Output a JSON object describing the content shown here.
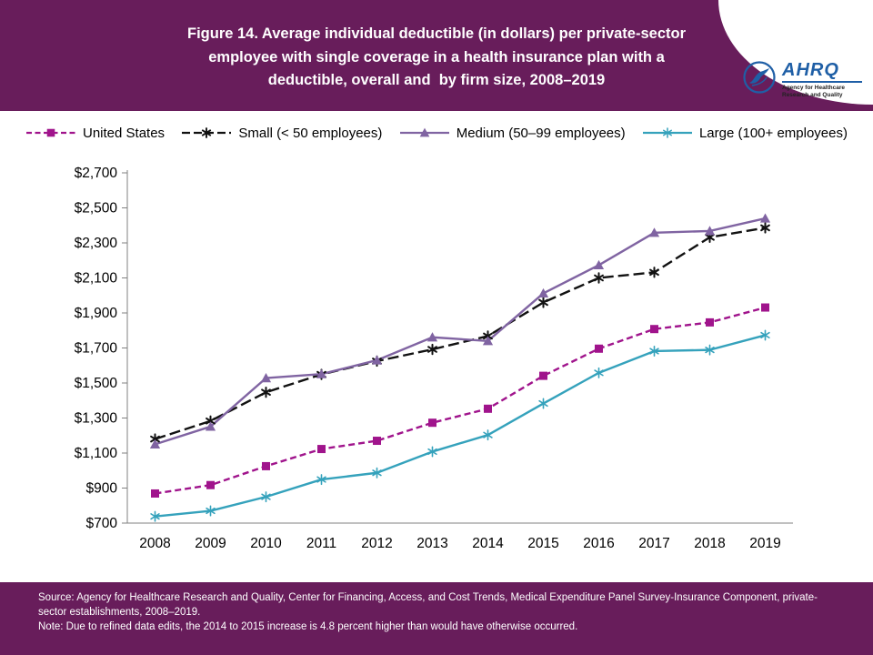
{
  "header": {
    "title_lines": [
      "Figure 14. Average individual deductible (in dollars) per private-sector",
      "employee with single coverage in a health insurance plan with a",
      "deductible, overall and  by firm size, 2008–2019"
    ],
    "ahrq_logo": "AHRQ",
    "ahrq_tagline": "Agency for Healthcare Research and Quality"
  },
  "colors": {
    "banner": "#681D5B",
    "united_states": "#A0148C",
    "small": "#111111",
    "medium": "#8064A2",
    "large": "#35A2BC",
    "axis": "#808080",
    "logo_blue": "#1F5FA6"
  },
  "chart_data": {
    "type": "line",
    "title": "Figure 14. Average individual deductible (in dollars) per private-sector employee with single coverage in a health insurance plan with a deductible, overall and by firm size, 2008–2019",
    "xlabel": "",
    "ylabel": "",
    "ylim": [
      700,
      2700
    ],
    "ytick_step": 200,
    "ytick_prefix": "$",
    "grid": false,
    "legend_position": "top",
    "categories": [
      "2008",
      "2009",
      "2010",
      "2011",
      "2012",
      "2013",
      "2014",
      "2015",
      "2016",
      "2017",
      "2018",
      "2019"
    ],
    "series": [
      {
        "name": "United States",
        "color": "#A0148C",
        "marker": "square",
        "dash": "dashed",
        "values": [
          869,
          917,
          1025,
          1123,
          1170,
          1273,
          1353,
          1541,
          1696,
          1808,
          1846,
          1931
        ]
      },
      {
        "name": "Small (< 50 employees)",
        "color": "#111111",
        "marker": "star",
        "dash": "dashed",
        "values": [
          1180,
          1283,
          1447,
          1549,
          1625,
          1692,
          1768,
          1960,
          2100,
          2132,
          2332,
          2386
        ]
      },
      {
        "name": "Medium (50–99 employees)",
        "color": "#8064A2",
        "marker": "triangle",
        "dash": "solid",
        "values": [
          1150,
          1251,
          1528,
          1551,
          1630,
          1761,
          1740,
          2012,
          2173,
          2358,
          2368,
          2440
        ]
      },
      {
        "name": "Large (100+ employees)",
        "color": "#35A2BC",
        "marker": "asterisk",
        "dash": "solid",
        "values": [
          738,
          770,
          850,
          949,
          987,
          1108,
          1203,
          1383,
          1558,
          1682,
          1689,
          1773
        ]
      }
    ]
  },
  "footer": {
    "source": "Source: Agency for Healthcare Research and Quality, Center for Financing, Access, and Cost Trends, Medical Expenditure Panel Survey-Insurance Component, private-sector establishments, 2008–2019.",
    "note": "Note: Due to refined data edits, the 2014 to 2015 increase is 4.8 percent higher than would have otherwise occurred."
  }
}
